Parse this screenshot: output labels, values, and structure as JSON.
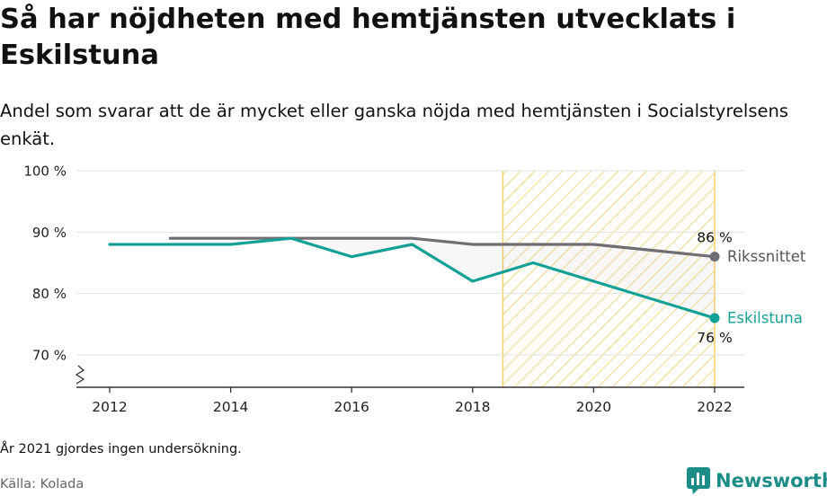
{
  "title": "Så har nöjdheten med hemtjänsten utvecklats i Eskilstuna",
  "subtitle": "Andel som svarar att de är mycket eller ganska nöjda med hemtjänsten i Socialstyrelsens enkät.",
  "note": "År 2021 gjordes ingen undersökning.",
  "source": "Källa: Kolada",
  "logo": {
    "text": "Newsworthy",
    "icon": "newsworthy-chart-logo-icon",
    "color": "#1c8c87"
  },
  "chart_data": {
    "type": "line",
    "x_ticks": [
      2012,
      2014,
      2016,
      2018,
      2020,
      2022
    ],
    "y_ticks": [
      70,
      80,
      90,
      100
    ],
    "y_tick_labels": [
      "70 %",
      "80 %",
      "90 %",
      "100 %"
    ],
    "xlim": [
      2011.5,
      2022.5
    ],
    "ylim": [
      65,
      100
    ],
    "y_axis_break": true,
    "grid": true,
    "highlight_region": {
      "x_from": 2018.5,
      "x_to": 2022,
      "pattern": "diagonal-hatch",
      "color": "#f6cf6d"
    },
    "series": [
      {
        "name": "Rikssnittet",
        "color": "#6e6e73",
        "x": [
          2013,
          2014,
          2015,
          2016,
          2017,
          2018,
          2019,
          2020,
          2022
        ],
        "values": [
          89,
          89,
          89,
          89,
          89,
          88,
          88,
          88,
          86
        ],
        "end_label": "86 %"
      },
      {
        "name": "Eskilstuna",
        "color": "#13a096",
        "x": [
          2012,
          2013,
          2014,
          2015,
          2016,
          2017,
          2018,
          2019,
          2020,
          2022
        ],
        "values": [
          88,
          88,
          88,
          89,
          86,
          88,
          82,
          85,
          82,
          76
        ],
        "end_label": "76 %"
      }
    ]
  }
}
